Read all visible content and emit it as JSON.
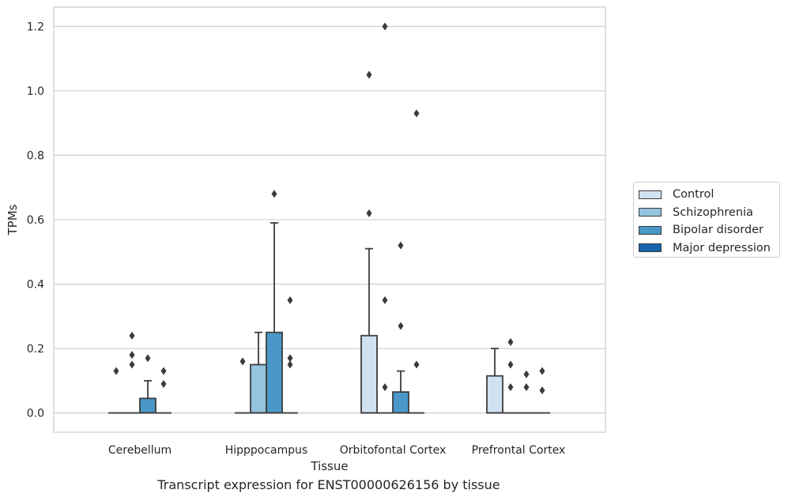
{
  "chart_data": {
    "type": "box",
    "title": "Transcript expression for ENST00000626156 by tissue",
    "xlabel": "Tissue",
    "ylabel": "TPMs",
    "ylim": [
      -0.06,
      1.26
    ],
    "yticks": [
      "0.0",
      "0.2",
      "0.4",
      "0.6",
      "0.8",
      "1.0",
      "1.2"
    ],
    "yticks_values": [
      0.0,
      0.2,
      0.4,
      0.6,
      0.8,
      1.0,
      1.2
    ],
    "grid": "horizontal",
    "legend_placement": "right",
    "categories": [
      "Cerebellum",
      "Hipppocampus",
      "Orbitofontal Cortex",
      "Prefrontal Cortex"
    ],
    "series": [
      {
        "name": "Control",
        "color": "#d0e1f2",
        "boxes": [
          {
            "q1": 0,
            "median": 0,
            "q3": 0,
            "whisker_low": 0,
            "whisker_high": 0,
            "outliers": [
              0.13
            ]
          },
          {
            "q1": 0,
            "median": 0,
            "q3": 0,
            "whisker_low": 0,
            "whisker_high": 0,
            "outliers": [
              0.16
            ]
          },
          {
            "q1": 0,
            "median": 0,
            "q3": 0.24,
            "whisker_low": 0,
            "whisker_high": 0.51,
            "outliers": [
              0.62,
              1.05
            ]
          },
          {
            "q1": 0,
            "median": 0,
            "q3": 0.115,
            "whisker_low": 0,
            "whisker_high": 0.2,
            "outliers": []
          }
        ]
      },
      {
        "name": "Schizophrenia",
        "color": "#94c4df",
        "boxes": [
          {
            "q1": 0,
            "median": 0,
            "q3": 0,
            "whisker_low": 0,
            "whisker_high": 0,
            "outliers": [
              0.15,
              0.18,
              0.24
            ]
          },
          {
            "q1": 0,
            "median": 0,
            "q3": 0.15,
            "whisker_low": 0,
            "whisker_high": 0.25,
            "outliers": []
          },
          {
            "q1": 0,
            "median": 0,
            "q3": 0,
            "whisker_low": 0,
            "whisker_high": 0,
            "outliers": [
              0.08,
              0.35,
              1.2
            ]
          },
          {
            "q1": 0,
            "median": 0,
            "q3": 0,
            "whisker_low": 0,
            "whisker_high": 0,
            "outliers": [
              0.08,
              0.15,
              0.22
            ]
          }
        ]
      },
      {
        "name": "Bipolar disorder",
        "color": "#4a98c9",
        "boxes": [
          {
            "q1": 0,
            "median": 0,
            "q3": 0.045,
            "whisker_low": 0,
            "whisker_high": 0.1,
            "outliers": [
              0.17
            ]
          },
          {
            "q1": 0,
            "median": 0,
            "q3": 0.25,
            "whisker_low": 0,
            "whisker_high": 0.59,
            "outliers": [
              0.68
            ]
          },
          {
            "q1": 0,
            "median": 0,
            "q3": 0.065,
            "whisker_low": 0,
            "whisker_high": 0.13,
            "outliers": [
              0.27,
              0.52
            ]
          },
          {
            "q1": 0,
            "median": 0,
            "q3": 0,
            "whisker_low": 0,
            "whisker_high": 0,
            "outliers": [
              0.08,
              0.12
            ]
          }
        ]
      },
      {
        "name": "Major depression",
        "color": "#1764ab",
        "boxes": [
          {
            "q1": 0,
            "median": 0,
            "q3": 0,
            "whisker_low": 0,
            "whisker_high": 0,
            "outliers": [
              0.09,
              0.13
            ]
          },
          {
            "q1": 0,
            "median": 0,
            "q3": 0,
            "whisker_low": 0,
            "whisker_high": 0,
            "outliers": [
              0.15,
              0.17,
              0.35
            ]
          },
          {
            "q1": 0,
            "median": 0,
            "q3": 0,
            "whisker_low": 0,
            "whisker_high": 0,
            "outliers": [
              0.15,
              0.93
            ]
          },
          {
            "q1": 0,
            "median": 0,
            "q3": 0,
            "whisker_low": 0,
            "whisker_high": 0,
            "outliers": [
              0.07,
              0.13
            ]
          }
        ]
      }
    ]
  },
  "colors": {
    "grid": "#cccccc",
    "spine": "#cccccc",
    "box_edge": "#3d3d3d",
    "text": "#262626"
  }
}
